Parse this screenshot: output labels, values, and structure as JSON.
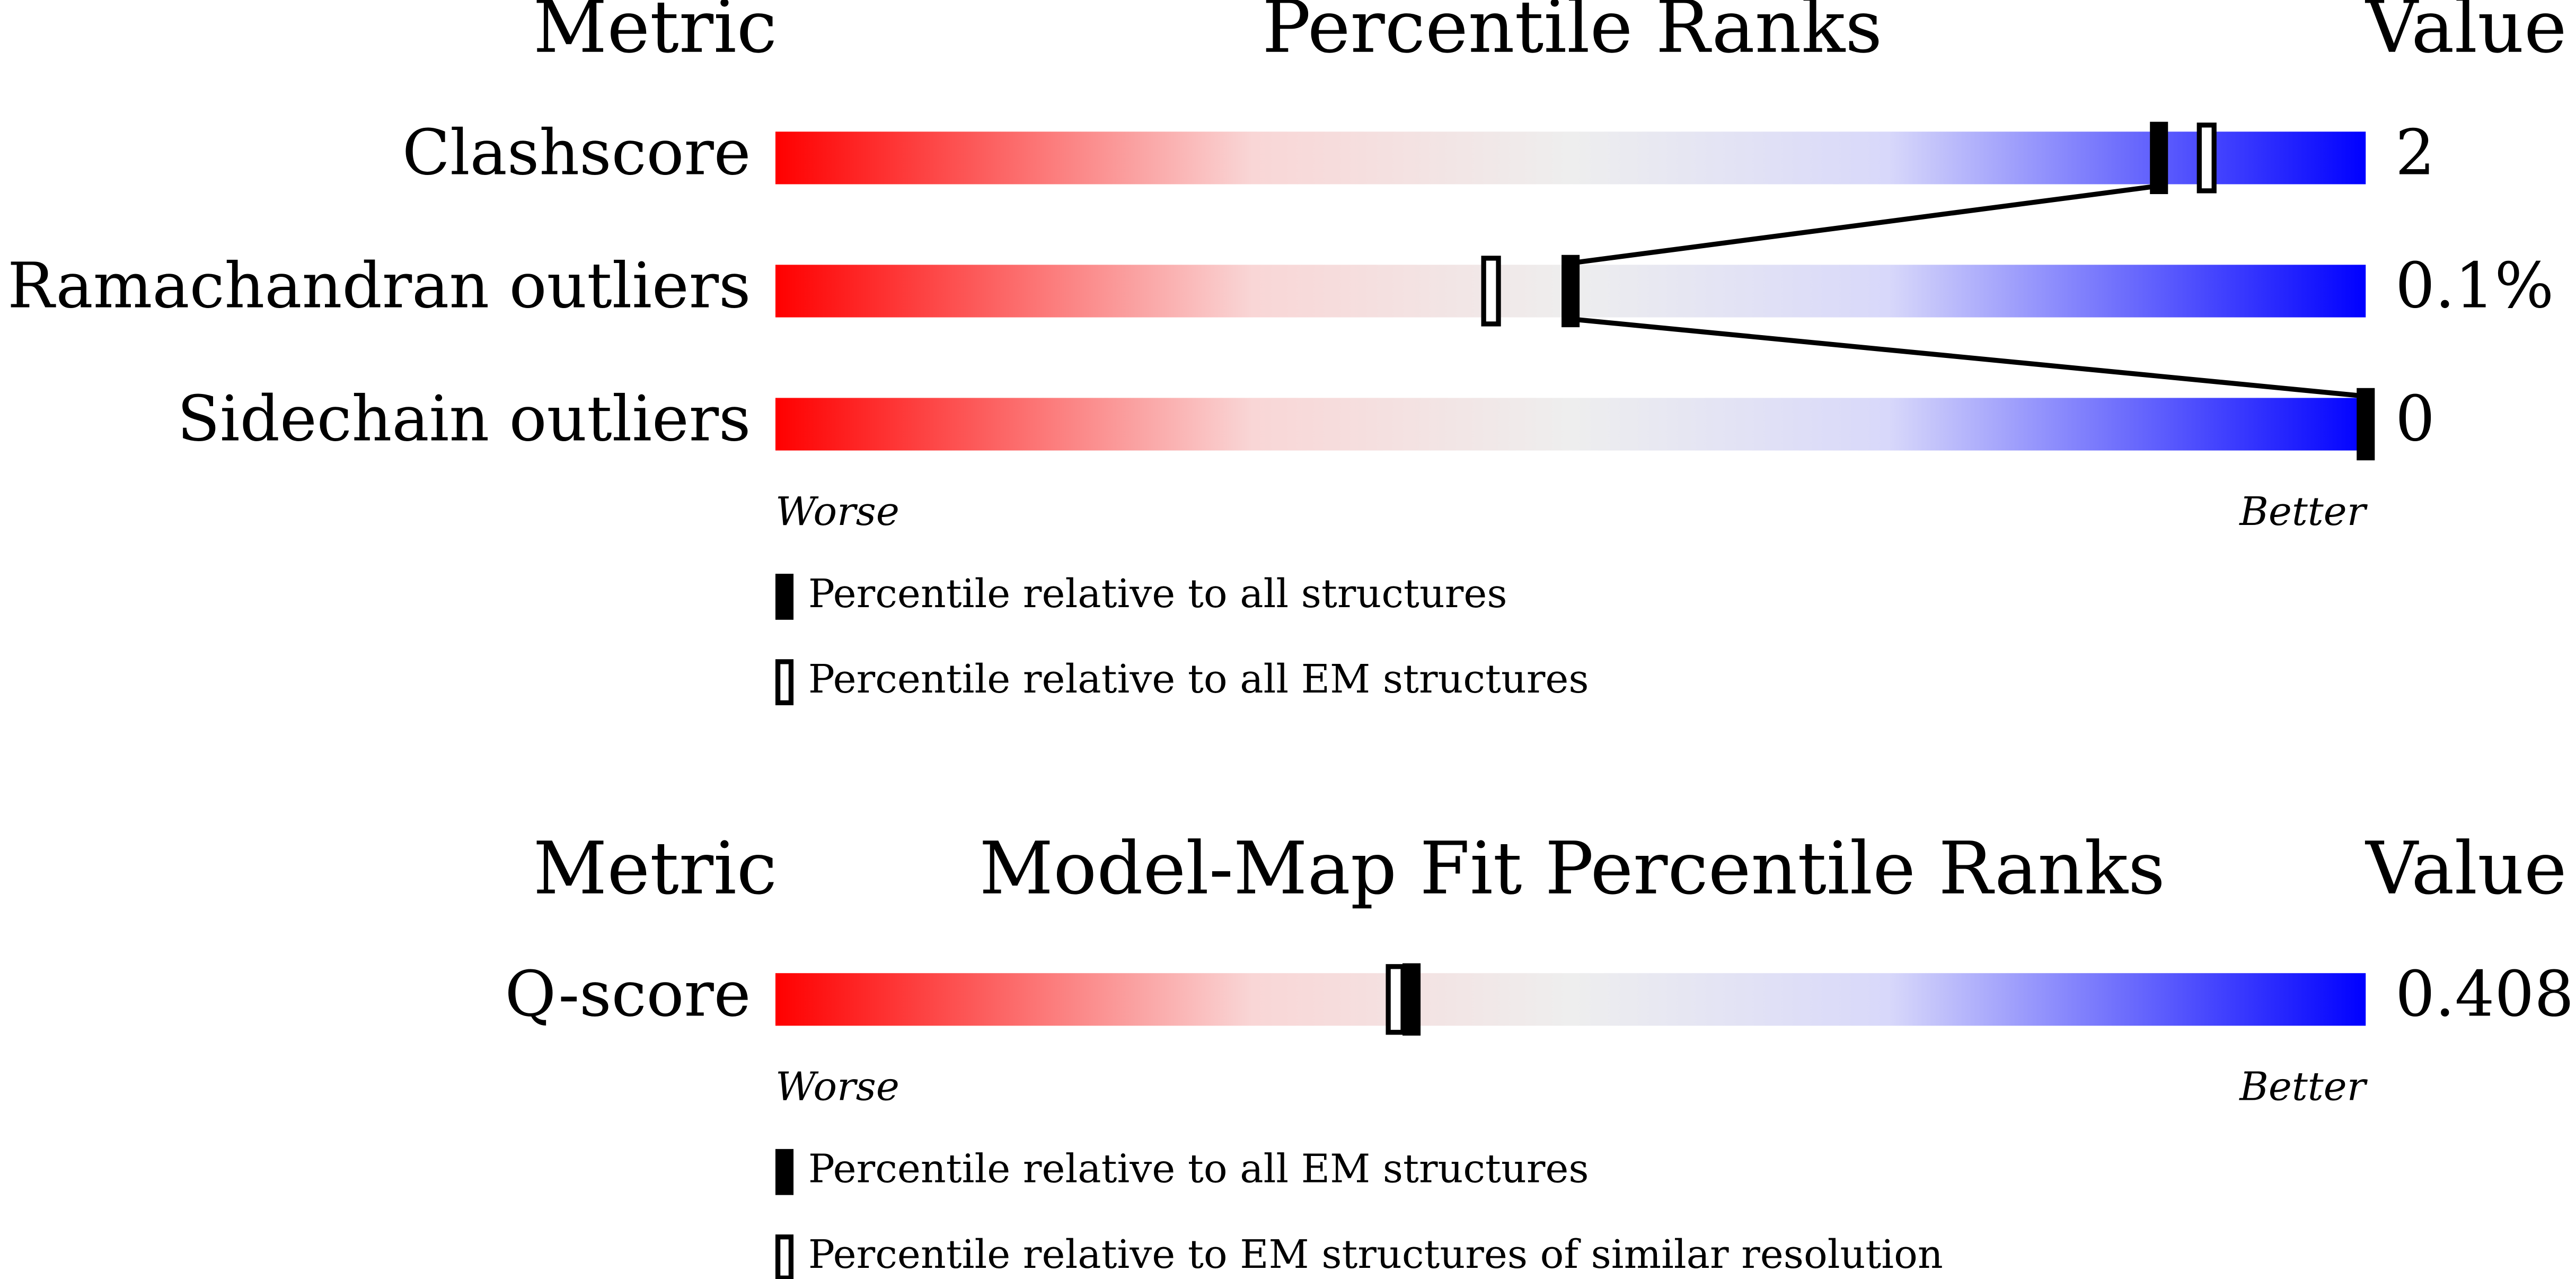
{
  "chart_data": [
    {
      "type": "percentile-slider",
      "metric_header": "Metric",
      "title": "Percentile Ranks",
      "value_header": "Value",
      "categories": [
        "Clashscore",
        "Ramachandran outliers",
        "Sidechain outliers"
      ],
      "metric_values": [
        "2",
        "0.1%",
        "0"
      ],
      "xlim": [
        0,
        100
      ],
      "low_label": "Worse",
      "high_label": "Better",
      "series": [
        {
          "name": "Percentile relative to all structures",
          "style": "filled",
          "color": "#000000",
          "values": [
            87,
            50,
            100
          ]
        },
        {
          "name": "Percentile relative to all EM structures",
          "style": "open",
          "color": "#000000",
          "values": [
            90,
            45,
            null
          ]
        }
      ]
    },
    {
      "type": "percentile-slider",
      "metric_header": "Metric",
      "title": "Model-Map Fit Percentile Ranks",
      "value_header": "Value",
      "categories": [
        "Q-score"
      ],
      "metric_values": [
        "0.408"
      ],
      "xlim": [
        0,
        100
      ],
      "low_label": "Worse",
      "high_label": "Better",
      "series": [
        {
          "name": "Percentile relative to all EM structures",
          "style": "filled",
          "color": "#000000",
          "values": [
            40
          ]
        },
        {
          "name": "Percentile relative to EM structures of similar resolution",
          "style": "open",
          "color": "#000000",
          "values": [
            39
          ]
        }
      ]
    }
  ]
}
